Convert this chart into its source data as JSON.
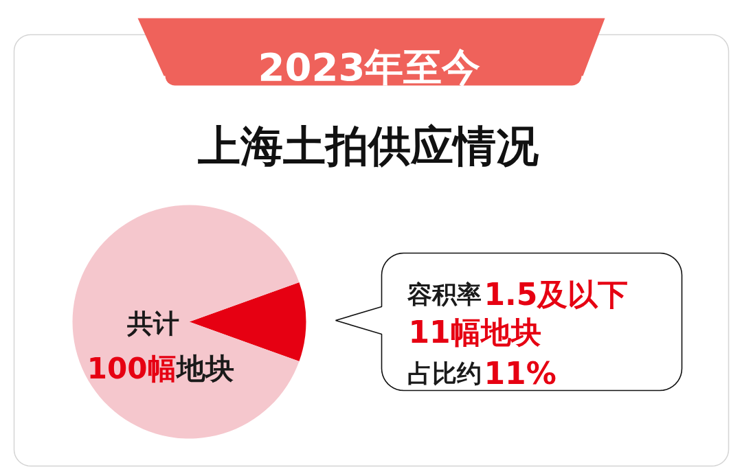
{
  "chart_data": {
    "type": "pie",
    "title": "2023年至今",
    "subtitle": "上海土拍供应情况",
    "categories": [
      null,
      null
    ],
    "values": [
      11,
      89
    ],
    "colors": [
      "#e60012",
      "#f5c7cd"
    ],
    "annotations": [
      "共计",
      "100幅",
      "地块",
      "容积率",
      "1.5及以下",
      "11幅地块",
      "占比约",
      "11%"
    ]
  }
}
